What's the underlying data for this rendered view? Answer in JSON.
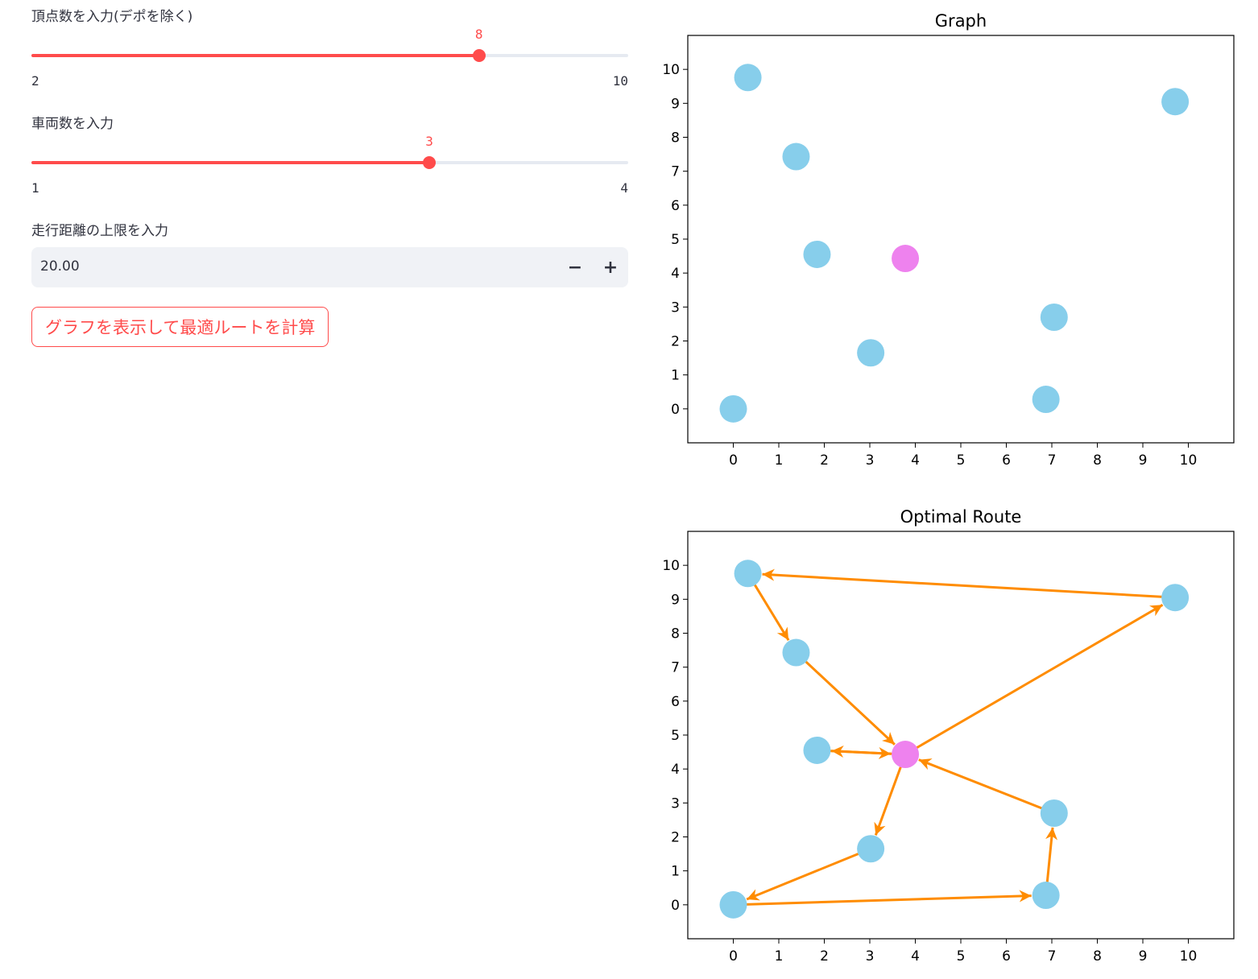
{
  "controls": {
    "vertex_slider": {
      "label": "頂点数を入力(デポを除く)",
      "value": "8",
      "min": "2",
      "max": "10",
      "fraction": 0.75
    },
    "vehicle_slider": {
      "label": "車両数を入力",
      "value": "3",
      "min": "1",
      "max": "4",
      "fraction": 0.6667
    },
    "distance_input": {
      "label": "走行距離の上限を入力",
      "value": "20.00",
      "minus": "−",
      "plus": "+"
    },
    "compute_button": {
      "label": "グラフを表示して最適ルートを計算"
    },
    "colors": {
      "accent": "#ff4b4b",
      "track": "#e6eaf1"
    }
  },
  "chart_data": [
    {
      "type": "scatter",
      "title": "Graph",
      "xlim": [
        -1,
        11
      ],
      "ylim": [
        -1,
        11
      ],
      "xticks": [
        "0",
        "1",
        "2",
        "3",
        "4",
        "5",
        "6",
        "7",
        "8",
        "9",
        "10"
      ],
      "yticks": [
        "0",
        "1",
        "2",
        "3",
        "4",
        "5",
        "6",
        "7",
        "8",
        "9",
        "10"
      ],
      "grid": false,
      "node_color": "#87ceeb",
      "depot_color": "#ee82ee",
      "depot": {
        "x": 3.78,
        "y": 4.43
      },
      "nodes": [
        {
          "x": 0.32,
          "y": 9.76
        },
        {
          "x": 1.38,
          "y": 7.43
        },
        {
          "x": 1.84,
          "y": 4.55
        },
        {
          "x": 9.71,
          "y": 9.05
        },
        {
          "x": 7.05,
          "y": 2.7
        },
        {
          "x": 3.02,
          "y": 1.65
        },
        {
          "x": 0.0,
          "y": 0.0
        },
        {
          "x": 6.87,
          "y": 0.28
        }
      ],
      "edges": []
    },
    {
      "type": "scatter",
      "title": "Optimal Route",
      "xlim": [
        -1,
        11
      ],
      "ylim": [
        -1,
        11
      ],
      "xticks": [
        "0",
        "1",
        "2",
        "3",
        "4",
        "5",
        "6",
        "7",
        "8",
        "9",
        "10"
      ],
      "yticks": [
        "0",
        "1",
        "2",
        "3",
        "4",
        "5",
        "6",
        "7",
        "8",
        "9",
        "10"
      ],
      "grid": false,
      "node_color": "#87ceeb",
      "depot_color": "#ee82ee",
      "edge_color": "#ff8c00",
      "depot": {
        "x": 3.78,
        "y": 4.43
      },
      "nodes": [
        {
          "x": 0.32,
          "y": 9.76
        },
        {
          "x": 1.38,
          "y": 7.43
        },
        {
          "x": 1.84,
          "y": 4.55
        },
        {
          "x": 9.71,
          "y": 9.05
        },
        {
          "x": 7.05,
          "y": 2.7
        },
        {
          "x": 3.02,
          "y": 1.65
        },
        {
          "x": 0.0,
          "y": 0.0
        },
        {
          "x": 6.87,
          "y": 0.28
        }
      ],
      "edges": [
        {
          "from": [
            3.78,
            4.43
          ],
          "to": [
            9.71,
            9.05
          ]
        },
        {
          "from": [
            9.71,
            9.05
          ],
          "to": [
            0.32,
            9.76
          ]
        },
        {
          "from": [
            0.32,
            9.76
          ],
          "to": [
            1.38,
            7.43
          ]
        },
        {
          "from": [
            1.38,
            7.43
          ],
          "to": [
            3.78,
            4.43
          ]
        },
        {
          "from": [
            3.78,
            4.43
          ],
          "to": [
            1.84,
            4.55
          ]
        },
        {
          "from": [
            1.84,
            4.55
          ],
          "to": [
            3.78,
            4.43
          ]
        },
        {
          "from": [
            3.78,
            4.43
          ],
          "to": [
            3.02,
            1.65
          ]
        },
        {
          "from": [
            3.02,
            1.65
          ],
          "to": [
            0.0,
            0.0
          ]
        },
        {
          "from": [
            0.0,
            0.0
          ],
          "to": [
            6.87,
            0.28
          ]
        },
        {
          "from": [
            6.87,
            0.28
          ],
          "to": [
            7.05,
            2.7
          ]
        },
        {
          "from": [
            7.05,
            2.7
          ],
          "to": [
            3.78,
            4.43
          ]
        }
      ]
    }
  ]
}
